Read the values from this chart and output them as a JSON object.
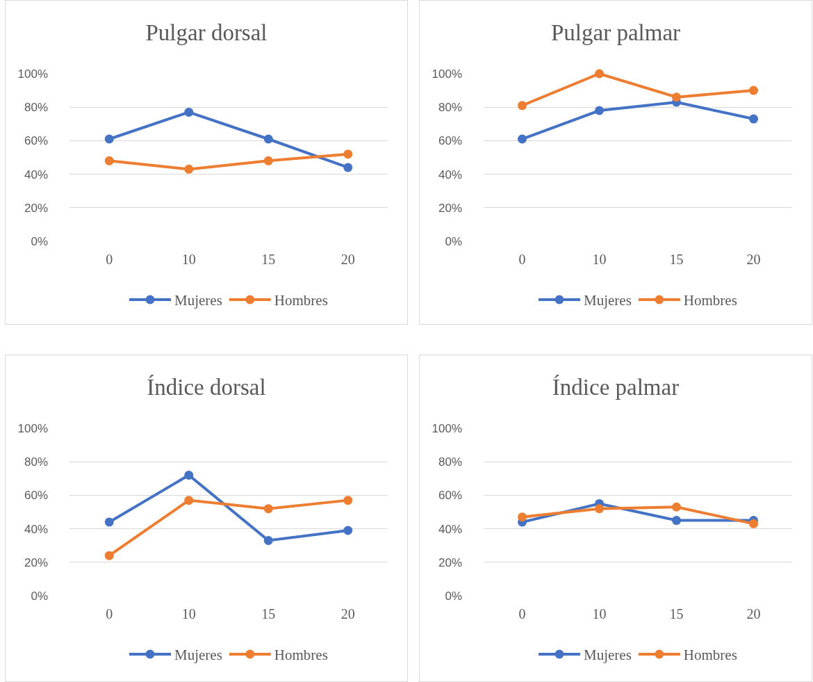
{
  "chart_data": [
    {
      "type": "line",
      "title": "Pulgar dorsal",
      "categories": [
        "0",
        "10",
        "15",
        "20"
      ],
      "series": [
        {
          "name": "Mujeres",
          "color": "#4472c4",
          "values": [
            61,
            77,
            61,
            44
          ]
        },
        {
          "name": "Hombres",
          "color": "#ed7d31",
          "values": [
            48,
            43,
            48,
            52
          ]
        }
      ],
      "ylim": [
        0,
        100
      ],
      "yticks": [
        {
          "value": 0,
          "label": "0%"
        },
        {
          "value": 20,
          "label": "20%"
        },
        {
          "value": 40,
          "label": "40%"
        },
        {
          "value": 60,
          "label": "60%"
        },
        {
          "value": 80,
          "label": "80%"
        },
        {
          "value": 100,
          "label": "100%"
        }
      ],
      "grid": "y",
      "legend": "bottom",
      "marker": "circle"
    },
    {
      "type": "line",
      "title": "Pulgar palmar",
      "categories": [
        "0",
        "10",
        "15",
        "20"
      ],
      "series": [
        {
          "name": "Mujeres",
          "color": "#4472c4",
          "values": [
            61,
            78,
            83,
            73
          ]
        },
        {
          "name": "Hombres",
          "color": "#ed7d31",
          "values": [
            81,
            100,
            86,
            90
          ]
        }
      ],
      "ylim": [
        0,
        100
      ],
      "yticks": [
        {
          "value": 0,
          "label": "0%"
        },
        {
          "value": 20,
          "label": "20%"
        },
        {
          "value": 40,
          "label": "40%"
        },
        {
          "value": 60,
          "label": "60%"
        },
        {
          "value": 80,
          "label": "80%"
        },
        {
          "value": 100,
          "label": "100%"
        }
      ],
      "grid": "y",
      "legend": "bottom",
      "marker": "circle"
    },
    {
      "type": "line",
      "title": "Índice dorsal",
      "categories": [
        "0",
        "10",
        "15",
        "20"
      ],
      "series": [
        {
          "name": "Mujeres",
          "color": "#4472c4",
          "values": [
            44,
            72,
            33,
            39
          ]
        },
        {
          "name": "Hombres",
          "color": "#ed7d31",
          "values": [
            24,
            57,
            52,
            57
          ]
        }
      ],
      "ylim": [
        0,
        100
      ],
      "yticks": [
        {
          "value": 0,
          "label": "0%"
        },
        {
          "value": 20,
          "label": "20%"
        },
        {
          "value": 40,
          "label": "40%"
        },
        {
          "value": 60,
          "label": "60%"
        },
        {
          "value": 80,
          "label": "80%"
        },
        {
          "value": 100,
          "label": "100%"
        }
      ],
      "grid": "y",
      "legend": "bottom",
      "marker": "circle"
    },
    {
      "type": "line",
      "title": "Índice palmar",
      "categories": [
        "0",
        "10",
        "15",
        "20"
      ],
      "series": [
        {
          "name": "Mujeres",
          "color": "#4472c4",
          "values": [
            44,
            55,
            45,
            45
          ]
        },
        {
          "name": "Hombres",
          "color": "#ed7d31",
          "values": [
            47,
            52,
            53,
            43
          ]
        }
      ],
      "ylim": [
        0,
        100
      ],
      "yticks": [
        {
          "value": 0,
          "label": "0%"
        },
        {
          "value": 20,
          "label": "20%"
        },
        {
          "value": 40,
          "label": "40%"
        },
        {
          "value": 60,
          "label": "60%"
        },
        {
          "value": 80,
          "label": "80%"
        },
        {
          "value": 100,
          "label": "100%"
        }
      ],
      "grid": "y",
      "legend": "bottom",
      "marker": "circle"
    }
  ]
}
